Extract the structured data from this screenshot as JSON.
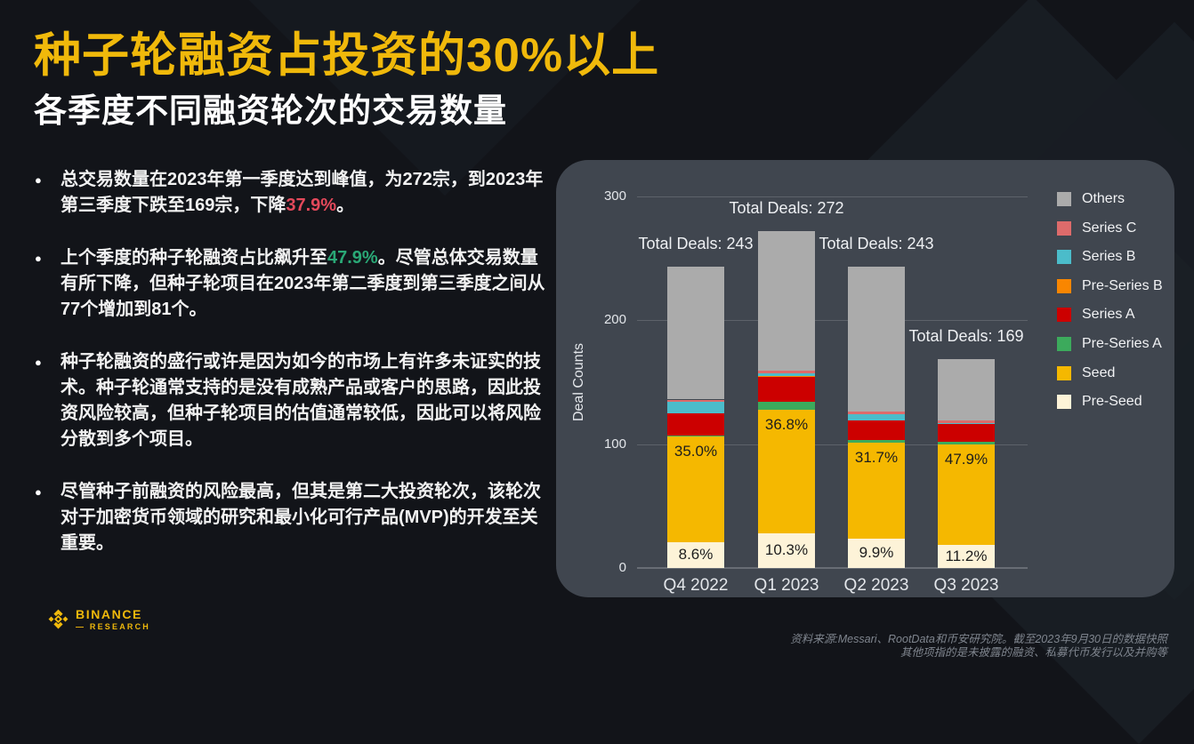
{
  "header": {
    "title": "种子轮融资占投资的30%以上",
    "subtitle": "各季度不同融资轮次的交易数量",
    "accent_color": "#f0b90b"
  },
  "highlight_colors": {
    "red": "#e4495b",
    "green": "#2aa876"
  },
  "bullets": [
    {
      "parts": [
        {
          "t": "总交易数量在2023年第一季度达到峰值，为272宗，到2023年第三季度下跌至169宗，下降"
        },
        {
          "t": "37.9%",
          "c": "red"
        },
        {
          "t": "。"
        }
      ]
    },
    {
      "parts": [
        {
          "t": "上个季度的种子轮融资占比飙升至"
        },
        {
          "t": "47.9%",
          "c": "green"
        },
        {
          "t": "。尽管总体交易数量有所下降，但种子轮项目在2023年第二季度到第三季度之间从77个增加到81个。"
        }
      ]
    },
    {
      "parts": [
        {
          "t": "种子轮融资的盛行或许是因为如今的市场上有许多未证实的技术。种子轮通常支持的是没有成熟产品或客户的思路，因此投资风险较高，但种子轮项目的估值通常较低，因此可以将风险分散到多个项目。"
        }
      ]
    },
    {
      "parts": [
        {
          "t": "尽管种子前融资的风险最高，但其是第二大投资轮次，该轮次对于加密货币领域的研究和最小化可行产品(MVP)的开发至关重要。"
        }
      ]
    }
  ],
  "chart_data": {
    "type": "bar",
    "stacked": true,
    "ylabel": "Deal Counts",
    "ylim": [
      0,
      300
    ],
    "yticks": [
      0,
      100,
      200,
      300
    ],
    "grid": true,
    "categories": [
      "Q4 2022",
      "Q1 2023",
      "Q2 2023",
      "Q3 2023"
    ],
    "totals": [
      243,
      272,
      243,
      169
    ],
    "total_labels": [
      "Total Deals: 243",
      "Total Deals: 272",
      "Total Deals: 243",
      "Total Deals: 169"
    ],
    "series": [
      {
        "name": "Pre-Seed",
        "color": "#fdf3d8",
        "values": [
          21,
          28,
          24,
          19
        ],
        "pct_labels": [
          "8.6%",
          "10.3%",
          "9.9%",
          "11.2%"
        ],
        "label_placement": "center"
      },
      {
        "name": "Seed",
        "color": "#f5b800",
        "values": [
          85,
          100,
          77,
          81
        ],
        "pct_labels": [
          "35.0%",
          "36.8%",
          "31.7%",
          "47.9%"
        ],
        "label_placement": "top"
      },
      {
        "name": "Pre-Series A",
        "color": "#3caa5c",
        "values": [
          1,
          6,
          2,
          2
        ]
      },
      {
        "name": "Series A",
        "color": "#cc0000",
        "values": [
          18,
          20,
          16,
          14
        ]
      },
      {
        "name": "Pre-Series B",
        "color": "#f98600",
        "values": [
          0,
          1,
          0,
          0
        ]
      },
      {
        "name": "Series B",
        "color": "#4bbcca",
        "values": [
          9,
          2,
          5,
          1
        ]
      },
      {
        "name": "Series C",
        "color": "#dd6b6b",
        "values": [
          2,
          2,
          2,
          2
        ]
      },
      {
        "name": "Others",
        "color": "#ababab",
        "values": [
          107,
          113,
          117,
          50
        ]
      }
    ],
    "legend": [
      "Others",
      "Series C",
      "Series B",
      "Pre-Series B",
      "Series A",
      "Pre-Series A",
      "Seed",
      "Pre-Seed"
    ],
    "legend_position": "right"
  },
  "footer": {
    "brand": "BINANCE",
    "brand_sub": "— RESEARCH",
    "source_line1": "资料来源:Messari、RootData和币安研究院。截至2023年9月30日的数据快照",
    "source_line2": "其他项指的是未披露的融资、私募代币发行以及并购等"
  }
}
